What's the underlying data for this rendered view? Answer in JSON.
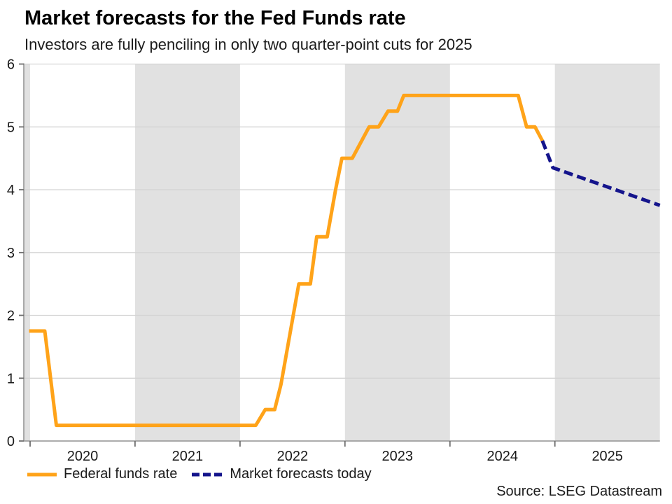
{
  "header": {
    "title": "Market forecasts for the Fed Funds rate",
    "subtitle": "Investors are fully penciling in only two quarter-point cuts for 2025"
  },
  "footer": {
    "source": "Source: LSEG Datastream"
  },
  "colors": {
    "fed_funds_line": "#FFA319",
    "forecast_line": "#14148C",
    "year_band": "#E1E1E1",
    "gridline": "#D4D4D4",
    "axis": "#949494",
    "tick": "#6E6E6E",
    "tick_text": "#1A1A1A"
  },
  "chart_data": {
    "type": "line",
    "title": "Market forecasts for the Fed Funds rate",
    "subtitle": "Investors are fully penciling in only two quarter-point cuts for 2025",
    "xlabel": "",
    "ylabel": "",
    "xlim": [
      2019.94,
      2026.0
    ],
    "ylim": [
      0,
      6
    ],
    "y_ticks": [
      0,
      1,
      2,
      3,
      4,
      5,
      6
    ],
    "x_ticks": [
      2020,
      2021,
      2022,
      2023,
      2024,
      2025
    ],
    "x_tick_labels": [
      "2020",
      "2021",
      "2022",
      "2023",
      "2024",
      "2025"
    ],
    "grid": "horizontal",
    "legend_position": "bottom-left",
    "shaded_year_bands": [
      [
        2019.94,
        2020.0
      ],
      [
        2021.0,
        2022.0
      ],
      [
        2023.0,
        2024.0
      ],
      [
        2025.0,
        2026.0
      ]
    ],
    "series": [
      {
        "name": "Federal funds rate",
        "color": "#FFA319",
        "style": "solid",
        "points": [
          [
            2019.99,
            1.75
          ],
          [
            2020.14,
            1.75
          ],
          [
            2020.25,
            0.25
          ],
          [
            2022.15,
            0.25
          ],
          [
            2022.24,
            0.5
          ],
          [
            2022.33,
            0.5
          ],
          [
            2022.39,
            0.9
          ],
          [
            2022.56,
            2.5
          ],
          [
            2022.67,
            2.5
          ],
          [
            2022.73,
            3.25
          ],
          [
            2022.83,
            3.25
          ],
          [
            2022.91,
            4.0
          ],
          [
            2022.97,
            4.5
          ],
          [
            2023.07,
            4.5
          ],
          [
            2023.23,
            5.0
          ],
          [
            2023.32,
            5.0
          ],
          [
            2023.41,
            5.25
          ],
          [
            2023.5,
            5.25
          ],
          [
            2023.56,
            5.5
          ],
          [
            2024.65,
            5.5
          ],
          [
            2024.73,
            5.0
          ],
          [
            2024.81,
            5.0
          ],
          [
            2024.88,
            4.78
          ]
        ]
      },
      {
        "name": "Market forecasts today",
        "color": "#14148C",
        "style": "dashed",
        "points": [
          [
            2024.88,
            4.78
          ],
          [
            2024.98,
            4.35
          ],
          [
            2026.0,
            3.75
          ]
        ]
      }
    ]
  }
}
